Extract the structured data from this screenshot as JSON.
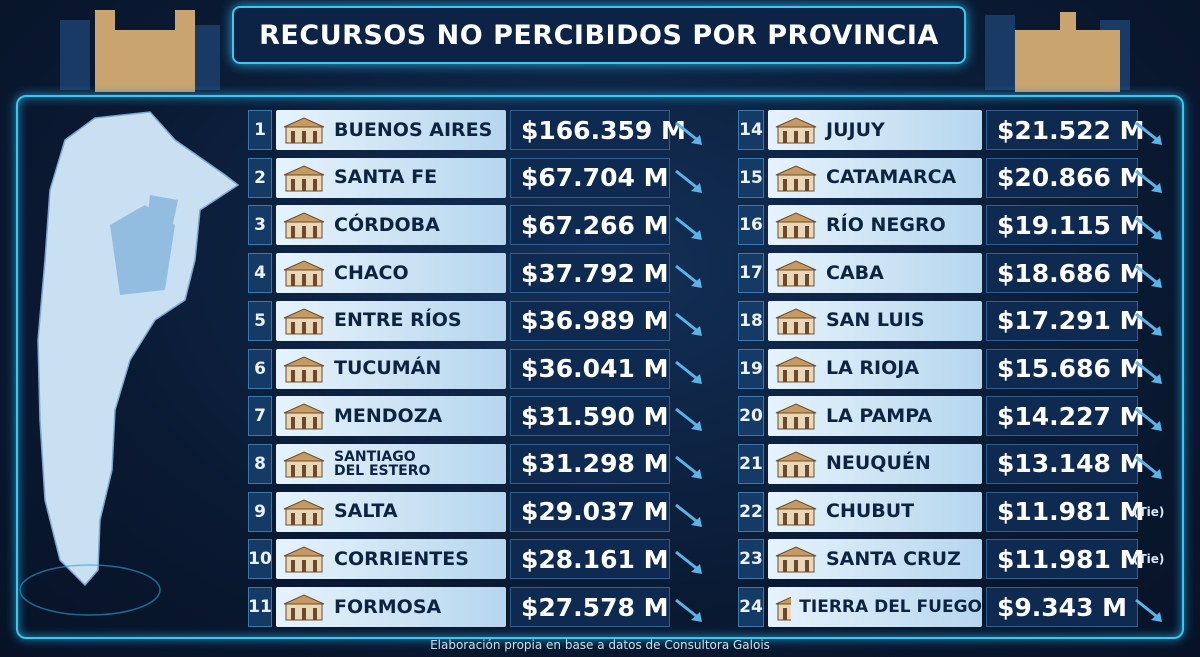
{
  "title": "RECURSOS NO PERCIBIDOS POR PROVINCIA",
  "columns": [
    {
      "rows": [
        {
          "rank": 1,
          "name": "BUENOS AIRES",
          "amount": "$166.359 M"
        },
        {
          "rank": 2,
          "name": "SANTA FE",
          "amount": "$67.704 M"
        },
        {
          "rank": 3,
          "name": "CÓRDOBA",
          "amount": "$67.266 M"
        },
        {
          "rank": 4,
          "name": "CHACO",
          "amount": "$37.792 M"
        },
        {
          "rank": 5,
          "name": "ENTRE RÍOS",
          "amount": "$36.989 M"
        },
        {
          "rank": 6,
          "name": "TUCUMÁN",
          "amount": "$36.041 M"
        },
        {
          "rank": 7,
          "name": "MENDOZA",
          "amount": "$31.590 M"
        },
        {
          "rank": 8,
          "name": "SANTIAGO DEL ESTERO",
          "amount": "$31.298 M"
        },
        {
          "rank": 9,
          "name": "SALTA",
          "amount": "$29.037 M"
        },
        {
          "rank": 10,
          "name": "CORRIENTES",
          "amount": "$28.161 M"
        },
        {
          "rank": 11,
          "name": "FORMOSA",
          "amount": "$27.578 M"
        }
      ]
    },
    {
      "rows": [
        {
          "rank": 14,
          "name": "JUJUY",
          "amount": "$21.522 M"
        },
        {
          "rank": 15,
          "name": "CATAMARCA",
          "amount": "$20.866 M"
        },
        {
          "rank": 16,
          "name": "RÍO NEGRO",
          "amount": "$19.115 M"
        },
        {
          "rank": 17,
          "name": "CABA",
          "amount": "$18.686 M"
        },
        {
          "rank": 18,
          "name": "SAN LUIS",
          "amount": "$17.291 M"
        },
        {
          "rank": 19,
          "name": "LA RIOJA",
          "amount": "$15.686 M"
        },
        {
          "rank": 20,
          "name": "LA PAMPA",
          "amount": "$14.227 M"
        },
        {
          "rank": 21,
          "name": "NEUQUÉN",
          "amount": "$13.148 M"
        },
        {
          "rank": 22,
          "name": "CHUBUT",
          "amount": "$11.981 M",
          "note": "(Tie)"
        },
        {
          "rank": 23,
          "name": "SANTA CRUZ",
          "amount": "$11.981 M",
          "note": "(Tie)"
        },
        {
          "rank": 24,
          "name": "TIERRA DEL FUEGO",
          "amount": "$9.343 M"
        }
      ]
    }
  ],
  "footer": "Elaboración propia en base a datos de Consultora Galois"
}
